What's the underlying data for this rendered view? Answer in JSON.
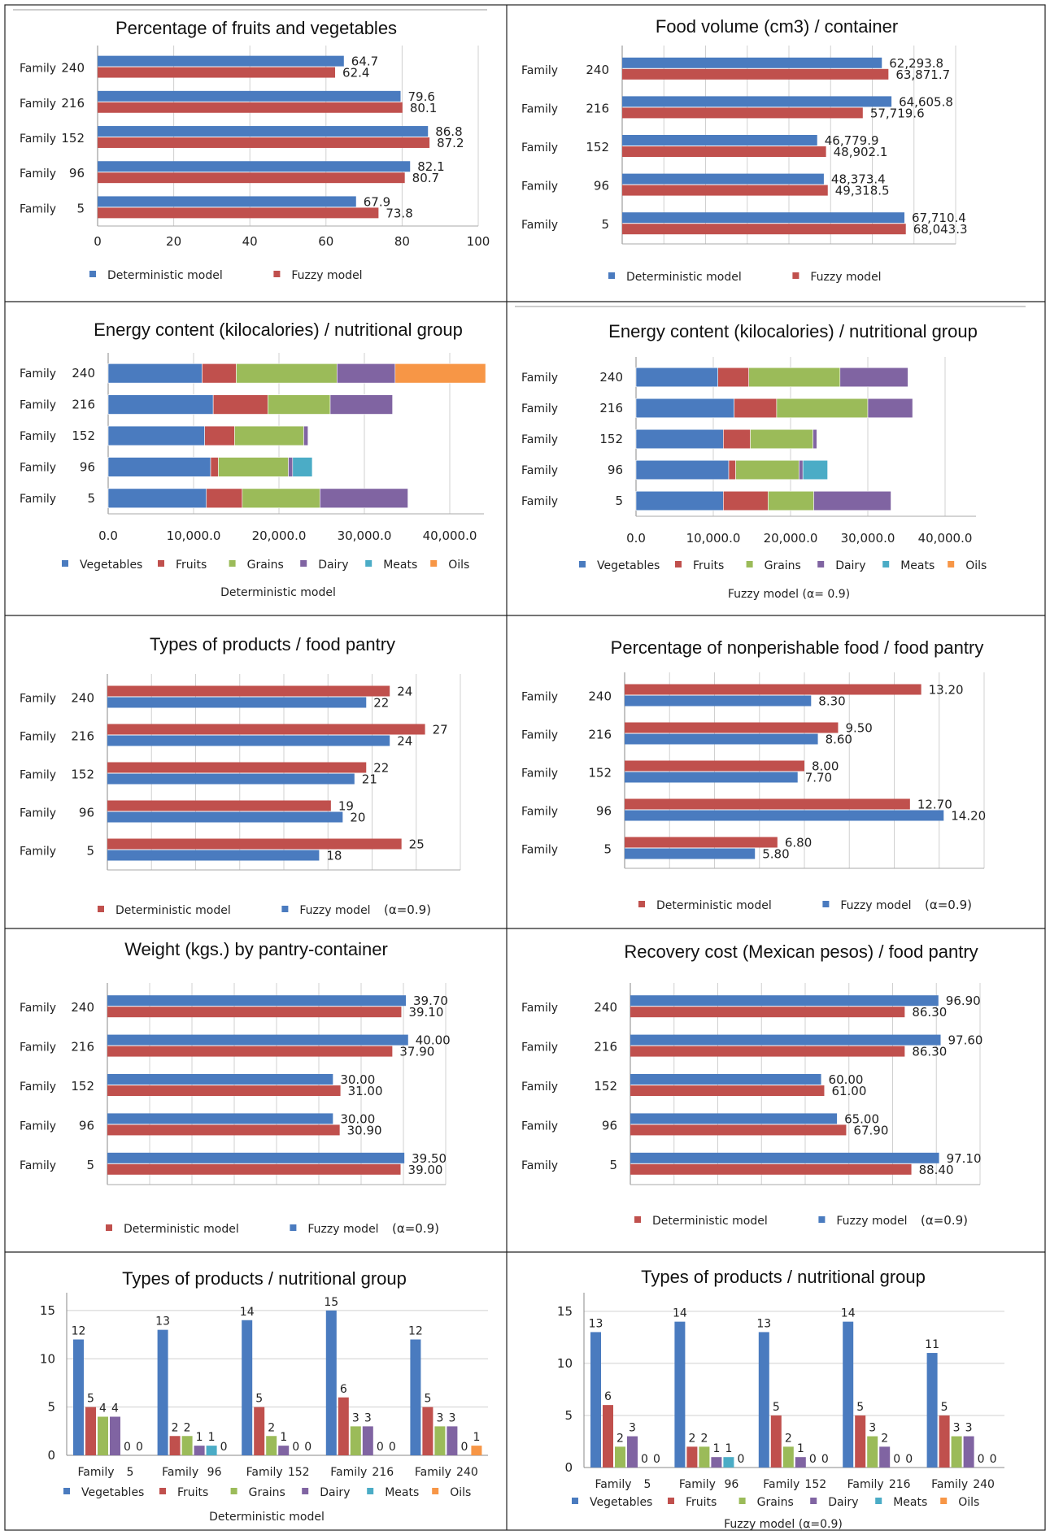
{
  "colors": {
    "blue": "#4a7bbf",
    "red": "#c0504d",
    "green": "#9bbb59",
    "purple": "#8064a2",
    "teal": "#4bacc6",
    "orange": "#f79646",
    "grid": "#d9d9d9"
  },
  "chart_data": [
    {
      "type": "bar",
      "orientation": "horizontal",
      "title": "Percentage of fruits and vegetables",
      "categories": [
        {
          "label": "Family",
          "num": "240"
        },
        {
          "label": "Family",
          "num": "216"
        },
        {
          "label": "Family",
          "num": "152"
        },
        {
          "label": "Family",
          "num": "96"
        },
        {
          "label": "Family",
          "num": "5"
        }
      ],
      "series": [
        {
          "name": "Deterministic model",
          "color": "#4a7bbf",
          "values": [
            64.7,
            79.6,
            86.8,
            82.1,
            67.9
          ],
          "labels": [
            "64.7",
            "79.6",
            "86.8",
            "82.1",
            "67.9"
          ]
        },
        {
          "name": "Fuzzy model",
          "color": "#c0504d",
          "values": [
            62.4,
            80.1,
            87.2,
            80.7,
            73.8
          ],
          "labels": [
            "62.4",
            "80.1",
            "87.2",
            "80.7",
            "73.8"
          ]
        }
      ],
      "xlim": [
        0,
        100
      ],
      "ticks": [
        0,
        20,
        40,
        60,
        80,
        100
      ],
      "tick_labels": [
        "0",
        "20",
        "40",
        "60",
        "80",
        "100"
      ],
      "grid": true
    },
    {
      "type": "bar",
      "orientation": "horizontal",
      "title": "Food volume (cm3) / container",
      "categories": [
        {
          "label": "Family",
          "num": "240"
        },
        {
          "label": "Family",
          "num": "216"
        },
        {
          "label": "Family",
          "num": "152"
        },
        {
          "label": "Family",
          "num": "96"
        },
        {
          "label": "Family",
          "num": "5"
        }
      ],
      "series": [
        {
          "name": "Deterministic model",
          "color": "#4a7bbf",
          "values": [
            62293.8,
            64605.8,
            46779.9,
            48373.4,
            67710.4
          ],
          "labels": [
            "62,293.8",
            "64,605.8",
            "46,779.9",
            "48,373.4",
            "67,710.4"
          ]
        },
        {
          "name": "Fuzzy model",
          "color": "#c0504d",
          "values": [
            63871.7,
            57719.6,
            48902.1,
            49318.5,
            68043.3
          ],
          "labels": [
            "63,871.7",
            "57,719.6",
            "48,902.1",
            "49,318.5",
            "68,043.3"
          ]
        }
      ],
      "xlim": [
        0,
        80000
      ],
      "grid": true
    },
    {
      "type": "bar",
      "orientation": "horizontal",
      "stacked": true,
      "title": "Energy content (kilocalories) / nutritional group",
      "caption": "Deterministic model",
      "categories": [
        {
          "label": "Family",
          "num": "240"
        },
        {
          "label": "Family",
          "num": "216"
        },
        {
          "label": "Family",
          "num": "152"
        },
        {
          "label": "Family",
          "num": "96"
        },
        {
          "label": "Family",
          "num": "5"
        }
      ],
      "series": [
        {
          "name": "Vegetables",
          "color": "#4a7bbf",
          "values": [
            11000,
            12300,
            11300,
            12000,
            11500
          ]
        },
        {
          "name": "Fruits",
          "color": "#c0504d",
          "values": [
            4000,
            6400,
            3500,
            900,
            4200
          ]
        },
        {
          "name": "Grains",
          "color": "#9bbb59",
          "values": [
            11800,
            7300,
            8100,
            8200,
            9100
          ]
        },
        {
          "name": "Dairy",
          "color": "#8064a2",
          "values": [
            6800,
            7300,
            500,
            500,
            10300
          ]
        },
        {
          "name": "Meats",
          "color": "#4bacc6",
          "values": [
            0,
            0,
            0,
            2300,
            0
          ]
        },
        {
          "name": "Oils",
          "color": "#f79646",
          "values": [
            10600,
            0,
            0,
            0,
            0
          ]
        }
      ],
      "xlim": [
        0,
        44000
      ],
      "ticks": [
        0,
        10000,
        20000,
        30000,
        40000
      ],
      "tick_labels": [
        "0.0",
        "10,000.0",
        "20,000.0",
        "30,000.0",
        "40,000.0"
      ],
      "grid": true
    },
    {
      "type": "bar",
      "orientation": "horizontal",
      "stacked": true,
      "title": "Energy content (kilocalories) / nutritional group",
      "caption": "Fuzzy model (α= 0.9)",
      "categories": [
        {
          "label": "Family",
          "num": "240"
        },
        {
          "label": "Family",
          "num": "216"
        },
        {
          "label": "Family",
          "num": "152"
        },
        {
          "label": "Family",
          "num": "96"
        },
        {
          "label": "Family",
          "num": "5"
        }
      ],
      "series": [
        {
          "name": "Vegetables",
          "color": "#4a7bbf",
          "values": [
            10600,
            12700,
            11300,
            12000,
            11300
          ]
        },
        {
          "name": "Fruits",
          "color": "#c0504d",
          "values": [
            4000,
            5500,
            3500,
            900,
            5800
          ]
        },
        {
          "name": "Grains",
          "color": "#9bbb59",
          "values": [
            11800,
            11800,
            8100,
            8200,
            5900
          ]
        },
        {
          "name": "Dairy",
          "color": "#8064a2",
          "values": [
            8800,
            5800,
            500,
            500,
            10000
          ]
        },
        {
          "name": "Meats",
          "color": "#4bacc6",
          "values": [
            0,
            0,
            0,
            3200,
            0
          ]
        },
        {
          "name": "Oils",
          "color": "#f79646",
          "values": [
            0,
            0,
            0,
            0,
            0
          ]
        }
      ],
      "xlim": [
        0,
        44000
      ],
      "ticks": [
        0,
        10000,
        20000,
        30000,
        40000
      ],
      "tick_labels": [
        "0.0",
        "10,000.0",
        "20,000.0",
        "30,000.0",
        "40,000.0"
      ],
      "grid": true
    },
    {
      "type": "bar",
      "orientation": "horizontal",
      "title": "Types of products / food pantry",
      "categories": [
        {
          "label": "Family",
          "num": "240"
        },
        {
          "label": "Family",
          "num": "216"
        },
        {
          "label": "Family",
          "num": "152"
        },
        {
          "label": "Family",
          "num": "96"
        },
        {
          "label": "Family",
          "num": "5"
        }
      ],
      "series": [
        {
          "name": "Deterministic model",
          "color": "#c0504d",
          "values": [
            24,
            27,
            22,
            19,
            25
          ],
          "labels": [
            "24",
            "27",
            "22",
            "19",
            "25"
          ]
        },
        {
          "name": "Fuzzy model",
          "color": "#4a7bbf",
          "values": [
            22,
            24,
            21,
            20,
            18
          ],
          "labels": [
            "22",
            "24",
            "21",
            "20",
            "18"
          ]
        }
      ],
      "legend_extra": "(α=0.9)",
      "xlim": [
        0,
        30
      ],
      "grid": true
    },
    {
      "type": "bar",
      "orientation": "horizontal",
      "title": "Percentage of nonperishable food / food pantry",
      "categories": [
        {
          "label": "Family",
          "num": "240"
        },
        {
          "label": "Family",
          "num": "216"
        },
        {
          "label": "Family",
          "num": "152"
        },
        {
          "label": "Family",
          "num": "96"
        },
        {
          "label": "Family",
          "num": "5"
        }
      ],
      "series": [
        {
          "name": "Deterministic model",
          "color": "#c0504d",
          "values": [
            13.2,
            9.5,
            8.0,
            12.7,
            6.8
          ],
          "labels": [
            "13.20",
            "9.50",
            "8.00",
            "12.70",
            "6.80"
          ]
        },
        {
          "name": "Fuzzy model",
          "color": "#4a7bbf",
          "values": [
            8.3,
            8.6,
            7.7,
            14.2,
            5.8
          ],
          "labels": [
            "8.30",
            "8.60",
            "7.70",
            "14.20",
            "5.80"
          ]
        }
      ],
      "legend_extra": "(α=0.9)",
      "xlim": [
        0,
        16
      ],
      "grid": true
    },
    {
      "type": "bar",
      "orientation": "horizontal",
      "title": "Weight (kgs.) by pantry-container",
      "categories": [
        {
          "label": "Family",
          "num": "240"
        },
        {
          "label": "Family",
          "num": "216"
        },
        {
          "label": "Family",
          "num": "152"
        },
        {
          "label": "Family",
          "num": "96"
        },
        {
          "label": "Family",
          "num": "5"
        }
      ],
      "series": [
        {
          "name": "Fuzzy model",
          "color": "#4a7bbf",
          "values": [
            39.7,
            40.0,
            30.0,
            30.0,
            39.5
          ],
          "labels": [
            "39.70",
            "40.00",
            "30.00",
            "30.00",
            "39.50"
          ]
        },
        {
          "name": "Deterministic model",
          "color": "#c0504d",
          "values": [
            39.1,
            37.9,
            31.0,
            30.9,
            39.0
          ],
          "labels": [
            "39.10",
            "37.90",
            "31.00",
            "30.90",
            "39.00"
          ]
        }
      ],
      "legend_order": [
        "Deterministic model",
        "Fuzzy model"
      ],
      "legend_extra": "(α=0.9)",
      "xlim": [
        0,
        45
      ],
      "grid": true
    },
    {
      "type": "bar",
      "orientation": "horizontal",
      "title": "Recovery cost (Mexican pesos) / food pantry",
      "categories": [
        {
          "label": "Family",
          "num": "240"
        },
        {
          "label": "Family",
          "num": "216"
        },
        {
          "label": "Family",
          "num": "152"
        },
        {
          "label": "Family",
          "num": "96"
        },
        {
          "label": "Family",
          "num": "5"
        }
      ],
      "series": [
        {
          "name": "Fuzzy model",
          "color": "#4a7bbf",
          "values": [
            96.9,
            97.6,
            60.0,
            65.0,
            97.1
          ],
          "labels": [
            "96.90",
            "97.60",
            "60.00",
            "65.00",
            "97.10"
          ]
        },
        {
          "name": "Deterministic model",
          "color": "#c0504d",
          "values": [
            86.3,
            86.3,
            61.0,
            67.9,
            88.4
          ],
          "labels": [
            "86.30",
            "86.30",
            "61.00",
            "67.90",
            "88.40"
          ]
        }
      ],
      "legend_order": [
        "Deterministic model",
        "Fuzzy model"
      ],
      "legend_extra": "(α=0.9)",
      "xlim": [
        0,
        110
      ],
      "grid": true
    },
    {
      "type": "bar",
      "orientation": "vertical",
      "title": "Types of products / nutritional group",
      "caption": "Deterministic model",
      "categories": [
        {
          "label": "Family",
          "num": "5"
        },
        {
          "label": "Family",
          "num": "96"
        },
        {
          "label": "Family",
          "num": "152"
        },
        {
          "label": "Family",
          "num": "216"
        },
        {
          "label": "Family",
          "num": "240"
        }
      ],
      "series": [
        {
          "name": "Vegetables",
          "color": "#4a7bbf",
          "values": [
            12,
            13,
            14,
            15,
            12
          ]
        },
        {
          "name": "Fruits",
          "color": "#c0504d",
          "values": [
            5,
            2,
            5,
            6,
            5
          ]
        },
        {
          "name": "Grains",
          "color": "#9bbb59",
          "values": [
            4,
            2,
            2,
            3,
            3
          ]
        },
        {
          "name": "Dairy",
          "color": "#8064a2",
          "values": [
            4,
            1,
            1,
            3,
            3
          ]
        },
        {
          "name": "Meats",
          "color": "#4bacc6",
          "values": [
            0,
            1,
            0,
            0,
            0
          ]
        },
        {
          "name": "Oils",
          "color": "#f79646",
          "values": [
            0,
            0,
            0,
            0,
            1
          ]
        }
      ],
      "ylim": [
        0,
        16
      ],
      "ticks": [
        0,
        5,
        10,
        15
      ],
      "tick_labels": [
        "0",
        "5",
        "10",
        "15"
      ],
      "grid": true
    },
    {
      "type": "bar",
      "orientation": "vertical",
      "title": "Types of products / nutritional group",
      "caption": "Fuzzy model",
      "caption_extra": "(α=0.9)",
      "categories": [
        {
          "label": "Family",
          "num": "5"
        },
        {
          "label": "Family",
          "num": "96"
        },
        {
          "label": "Family",
          "num": "152"
        },
        {
          "label": "Family",
          "num": "216"
        },
        {
          "label": "Family",
          "num": "240"
        }
      ],
      "series": [
        {
          "name": "Vegetables",
          "color": "#4a7bbf",
          "values": [
            13,
            14,
            13,
            14,
            11
          ]
        },
        {
          "name": "Fruits",
          "color": "#c0504d",
          "values": [
            6,
            2,
            5,
            5,
            5
          ]
        },
        {
          "name": "Grains",
          "color": "#9bbb59",
          "values": [
            2,
            2,
            2,
            3,
            3
          ]
        },
        {
          "name": "Dairy",
          "color": "#8064a2",
          "values": [
            3,
            1,
            1,
            2,
            3
          ]
        },
        {
          "name": "Meats",
          "color": "#4bacc6",
          "values": [
            0,
            1,
            0,
            0,
            0
          ]
        },
        {
          "name": "Oils",
          "color": "#f79646",
          "values": [
            0,
            0,
            0,
            0,
            0
          ]
        }
      ],
      "ylim": [
        0,
        16
      ],
      "ticks": [
        0,
        5,
        10,
        15
      ],
      "tick_labels": [
        "0",
        "5",
        "10",
        "15"
      ],
      "grid": true
    }
  ]
}
